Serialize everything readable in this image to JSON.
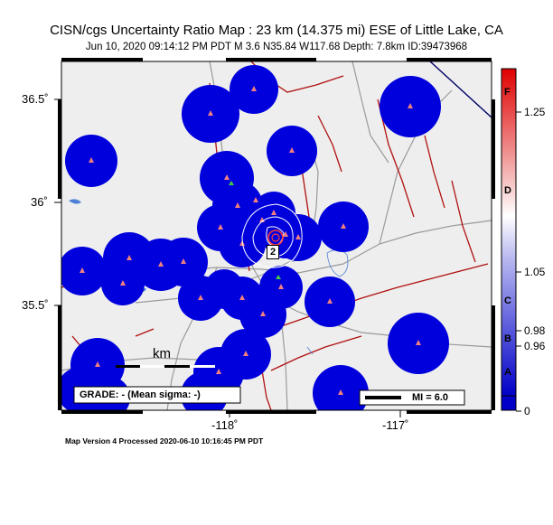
{
  "title": "CISN/cgs Uncertainty Ratio Map : 23 km (14.375 mi) ESE of Little Lake, CA",
  "subtitle": "Jun 10, 2020 09:14:12 PM PDT   M 3.6   N35.84 W117.68   Depth: 7.8km   ID:39473968",
  "footer": "Map Version 4 Processed 2020-06-10 10:16:45 PM PDT",
  "grade_label": "GRADE: - (Mean sigma: -)",
  "scale_label": "km",
  "mi_label": "MI = 6.0",
  "epicenter_label": "2",
  "axes": {
    "lat_ticks": [
      "36.5˚",
      "36˚",
      "35.5˚"
    ],
    "lon_ticks": [
      "-118˚",
      "-117˚"
    ]
  },
  "colorbar": {
    "letters": [
      "F",
      "D",
      "C",
      "B",
      "A"
    ],
    "values": [
      "1.25",
      "1.05",
      "0.98",
      "0.96",
      "0"
    ]
  },
  "colors": {
    "station_blob": "#0000dd",
    "fault": "#b01010",
    "road": "#9a9a9a",
    "water": "#4d7fd6",
    "land": "#eeeeee"
  }
}
